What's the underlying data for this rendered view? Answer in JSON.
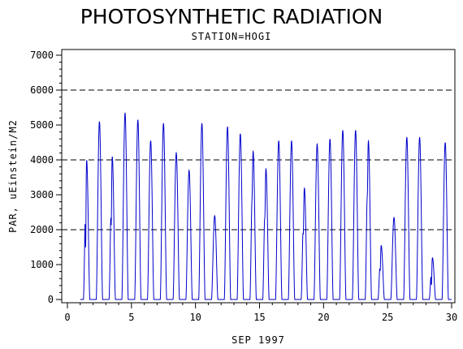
{
  "chart_data": {
    "type": "line",
    "title": "PHOTOSYNTHETIC RADIATION",
    "subtitle": "STATION=HOGI",
    "xlabel": "SEP 1997",
    "ylabel": "PAR, uEinstein/M2",
    "xlim": [
      0,
      30
    ],
    "ylim": [
      0,
      7000
    ],
    "x_ticks": [
      "0",
      "5",
      "10",
      "15",
      "20",
      "25",
      "30"
    ],
    "y_ticks": [
      "0",
      "1000",
      "2000",
      "3000",
      "4000",
      "5000",
      "6000",
      "7000"
    ],
    "reference_lines": [
      2000,
      4000,
      6000
    ],
    "grid": false,
    "line_color": "#0000cc",
    "series": [
      {
        "daily_peaks": [
          {
            "day": 1,
            "peak": 4000,
            "dip": 1800
          },
          {
            "day": 2,
            "peak": 5100,
            "dip": null
          },
          {
            "day": 3,
            "peak": 4100,
            "dip": 2600
          },
          {
            "day": 4,
            "peak": 5350,
            "dip": null
          },
          {
            "day": 5,
            "peak": 5150,
            "dip": null
          },
          {
            "day": 6,
            "peak": 4550,
            "dip": null
          },
          {
            "day": 7,
            "peak": 5050,
            "dip": null
          },
          {
            "day": 8,
            "peak": 4200,
            "dip": null
          },
          {
            "day": 9,
            "peak": 3700,
            "dip": null
          },
          {
            "day": 10,
            "peak": 5050,
            "dip": null
          },
          {
            "day": 11,
            "peak": 2400,
            "dip": null
          },
          {
            "day": 12,
            "peak": 4950,
            "dip": null
          },
          {
            "day": 13,
            "peak": 4750,
            "dip": null
          },
          {
            "day": 14,
            "peak": 4250,
            "dip": 3600
          },
          {
            "day": 15,
            "peak": 3750,
            "dip": 2900
          },
          {
            "day": 16,
            "peak": 4550,
            "dip": null
          },
          {
            "day": 17,
            "peak": 4550,
            "dip": null
          },
          {
            "day": 18,
            "peak": 3200,
            "dip": 2300
          },
          {
            "day": 19,
            "peak": 4450,
            "dip": null
          },
          {
            "day": 20,
            "peak": 4600,
            "dip": null
          },
          {
            "day": 21,
            "peak": 4850,
            "dip": null
          },
          {
            "day": 22,
            "peak": 4850,
            "dip": null
          },
          {
            "day": 23,
            "peak": 4550,
            "dip": 3700
          },
          {
            "day": 24,
            "peak": 1550,
            "dip": 1000
          },
          {
            "day": 25,
            "peak": 2350,
            "dip": null
          },
          {
            "day": 26,
            "peak": 4650,
            "dip": null
          },
          {
            "day": 27,
            "peak": 4650,
            "dip": null
          },
          {
            "day": 28,
            "peak": 1200,
            "dip": 500
          },
          {
            "day": 29,
            "peak": 4500,
            "dip": null
          }
        ]
      }
    ]
  }
}
